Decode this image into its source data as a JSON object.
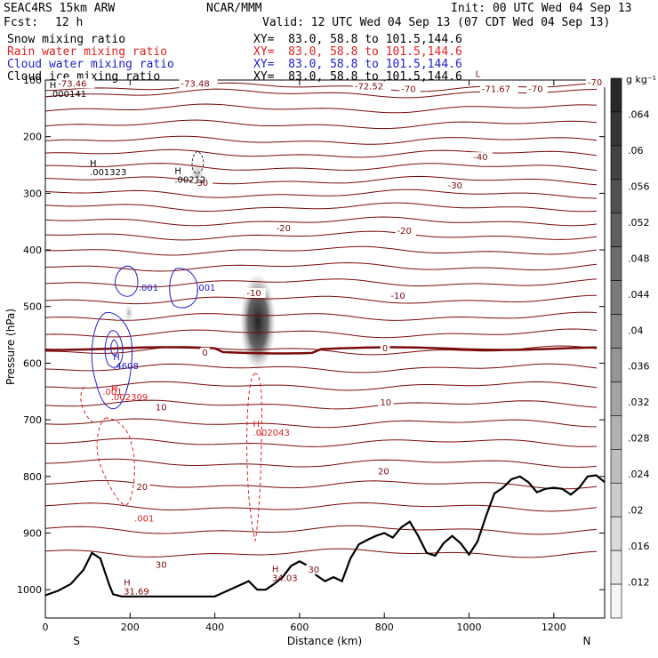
{
  "header": {
    "model": "SEAC4RS 15km ARW",
    "org": "NCAR/MMM",
    "init": "Init: 00 UTC Wed 04 Sep 13",
    "fcst_label": "Fcst:",
    "fcst_value": "12 h",
    "valid": "Valid: 12 UTC Wed 04 Sep 13 (07 CDT Wed 04 Sep 13)"
  },
  "legend": [
    {
      "label": "Snow mixing ratio",
      "xy": "XY=  83.0, 58.8 to 101.5,144.6",
      "color": "#000000"
    },
    {
      "label": "Rain water mixing ratio",
      "xy": "XY=  83.0, 58.8 to 101.5,144.6",
      "color": "#e02020"
    },
    {
      "label": "Cloud water mixing ratio",
      "xy": "XY=  83.0, 58.8 to 101.5,144.6",
      "color": "#2020d0"
    },
    {
      "label": "Cloud ice mixing ratio",
      "xy": "XY=  83.0, 58.8 to 101.5,144.6",
      "color": "#000000"
    }
  ],
  "colorbar": {
    "unit": "g kg⁻¹",
    "ticks": [
      ".064",
      ".06",
      ".056",
      ".052",
      ".048",
      ".044",
      ".04",
      ".036",
      ".032",
      ".028",
      ".024",
      ".02",
      ".016",
      ".012"
    ],
    "values": [
      0.064,
      0.06,
      0.056,
      0.052,
      0.048,
      0.044,
      0.04,
      0.036,
      0.032,
      0.028,
      0.024,
      0.02,
      0.016,
      0.012
    ]
  },
  "chart_data": {
    "type": "contour",
    "xlabel": "Distance (km)",
    "ylabel": "Pressure (hPa)",
    "xlim": [
      0,
      1320
    ],
    "ylim": [
      1050,
      100
    ],
    "x_ticks": [
      0,
      200,
      400,
      600,
      800,
      1000,
      1200
    ],
    "y_ticks": [
      100,
      200,
      300,
      400,
      500,
      600,
      700,
      800,
      900,
      1000
    ],
    "x_end_labels": {
      "left": "S",
      "right": "N"
    },
    "temperature_contour_color": "#7a0a0a",
    "temperature_labels": [
      {
        "text": "-73.46",
        "x": 30,
        "p": 110
      },
      {
        "text": "-73.48",
        "x": 320,
        "p": 110
      },
      {
        "text": "-72.52",
        "x": 730,
        "p": 115
      },
      {
        "text": "-70",
        "x": 840,
        "p": 120
      },
      {
        "text": "-71.67",
        "x": 1030,
        "p": 120
      },
      {
        "text": "-70",
        "x": 1140,
        "p": 120
      },
      {
        "text": "-70",
        "x": 1280,
        "p": 108
      },
      {
        "text": "-40",
        "x": 1010,
        "p": 240
      },
      {
        "text": "-30",
        "x": 350,
        "p": 285
      },
      {
        "text": "-30",
        "x": 950,
        "p": 290
      },
      {
        "text": "-20",
        "x": 545,
        "p": 365
      },
      {
        "text": "-20",
        "x": 830,
        "p": 370
      },
      {
        "text": "-10",
        "x": 475,
        "p": 480
      },
      {
        "text": "-10",
        "x": 815,
        "p": 485
      },
      {
        "text": "0",
        "x": 370,
        "p": 585
      },
      {
        "text": "0",
        "x": 795,
        "p": 577
      },
      {
        "text": "10",
        "x": 260,
        "p": 682
      },
      {
        "text": "10",
        "x": 790,
        "p": 673
      },
      {
        "text": "20",
        "x": 215,
        "p": 822
      },
      {
        "text": "20",
        "x": 785,
        "p": 795
      },
      {
        "text": "30",
        "x": 260,
        "p": 960
      },
      {
        "text": "30",
        "x": 620,
        "p": 968
      }
    ],
    "extrema_labels": [
      {
        "mark": "H",
        "text": ".000141",
        "x": 10,
        "p": 130,
        "color": "#000000"
      },
      {
        "mark": "H",
        "text": ".001323",
        "x": 105,
        "p": 268,
        "color": "#000000"
      },
      {
        "mark": "H",
        "text": ".00212",
        "x": 305,
        "p": 281,
        "color": "#000000"
      },
      {
        "mark": "",
        "text": ".001",
        "x": 220,
        "p": 472,
        "color": "#2020d0"
      },
      {
        "mark": "",
        "text": ".001",
        "x": 355,
        "p": 472,
        "color": "#2020d0"
      },
      {
        "mark": "H",
        "text": ".4608",
        "x": 160,
        "p": 610,
        "color": "#2020d0"
      },
      {
        "mark": "",
        "text": ".001",
        "x": 135,
        "p": 656,
        "color": "#e02020"
      },
      {
        "mark": "H",
        "text": ".002309",
        "x": 155,
        "p": 665,
        "color": "#e02020"
      },
      {
        "mark": "H",
        "text": ".002043",
        "x": 490,
        "p": 728,
        "color": "#e02020"
      },
      {
        "mark": "",
        "text": ".001",
        "x": 210,
        "p": 880,
        "color": "#e02020"
      },
      {
        "mark": "H",
        "text": "34.03",
        "x": 535,
        "p": 985,
        "color": "#7a0a0a"
      },
      {
        "mark": "H",
        "text": "31.69",
        "x": 185,
        "p": 1008,
        "color": "#7a0a0a"
      },
      {
        "mark": "L",
        "text": "",
        "x": 1015,
        "p": 110,
        "color": "#7a0a0a"
      }
    ],
    "terrain_km": [
      0,
      30,
      60,
      90,
      110,
      130,
      150,
      160,
      180,
      200,
      220,
      300,
      400,
      450,
      480,
      500,
      520,
      540,
      560,
      580,
      600,
      620,
      640,
      660,
      680,
      700,
      720,
      740,
      760,
      780,
      800,
      820,
      840,
      860,
      880,
      900,
      920,
      940,
      960,
      980,
      1000,
      1020,
      1040,
      1060,
      1080,
      1100,
      1120,
      1140,
      1160,
      1180,
      1200,
      1220,
      1240,
      1260,
      1280,
      1300,
      1320
    ],
    "terrain_p": [
      1010,
      1002,
      990,
      965,
      935,
      945,
      990,
      1008,
      1012,
      1012,
      1012,
      1012,
      1012,
      995,
      985,
      1000,
      1000,
      990,
      978,
      958,
      950,
      958,
      975,
      985,
      978,
      985,
      945,
      920,
      912,
      905,
      900,
      908,
      890,
      880,
      905,
      935,
      940,
      918,
      905,
      918,
      938,
      915,
      870,
      830,
      820,
      805,
      800,
      810,
      828,
      822,
      820,
      822,
      832,
      820,
      800,
      798,
      810
    ]
  }
}
